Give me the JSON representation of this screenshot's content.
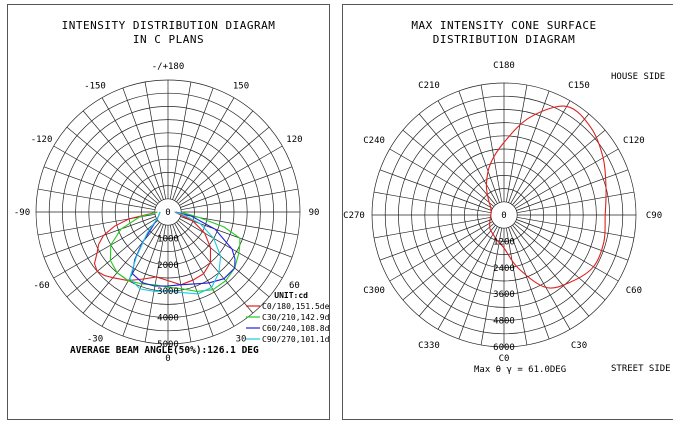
{
  "left_chart": {
    "title_line1": "INTENSITY DISTRIBUTION DIAGRAM",
    "title_line2": "IN C PLANS",
    "unit_label": "UNIT:cd",
    "footer": "AVERAGE BEAM ANGLE(50%):126.1 DEG",
    "angle_labels": [
      {
        "angle": 180,
        "text": "-/+180"
      },
      {
        "angle": 150,
        "text": "150"
      },
      {
        "angle": -150,
        "text": "-150"
      },
      {
        "angle": 120,
        "text": "120"
      },
      {
        "angle": -120,
        "text": "-120"
      },
      {
        "angle": 90,
        "text": "90"
      },
      {
        "angle": -90,
        "text": "-90"
      },
      {
        "angle": 60,
        "text": "60"
      },
      {
        "angle": -60,
        "text": "-60"
      },
      {
        "angle": 30,
        "text": "30"
      },
      {
        "angle": -30,
        "text": "-30"
      },
      {
        "angle": 0,
        "text": "0"
      }
    ],
    "radial_labels": [
      "0",
      "1000",
      "2000",
      "3000",
      "4000",
      "5000"
    ],
    "legend": [
      {
        "text": "C0/180,151.5deg",
        "color": "#e02020"
      },
      {
        "text": "C30/210,142.9deg",
        "color": "#22cc22"
      },
      {
        "text": "C60/240,108.8deg",
        "color": "#2020e0"
      },
      {
        "text": "C90/270,101.1deg",
        "color": "#20c8e0"
      }
    ]
  },
  "right_chart": {
    "title_line1": "MAX INTENSITY CONE SURFACE",
    "title_line2": "DISTRIBUTION DIAGRAM",
    "house_side": "HOUSE SIDE",
    "street_side": "STREET SIDE",
    "footer_c0": "C0",
    "footer_max": "Max θ γ = 61.0DEG",
    "c_labels": [
      {
        "angle": 180,
        "text": "C180"
      },
      {
        "angle": 150,
        "text": "C150"
      },
      {
        "angle": 120,
        "text": "C120"
      },
      {
        "angle": 90,
        "text": "C90"
      },
      {
        "angle": 60,
        "text": "C60"
      },
      {
        "angle": 30,
        "text": "C30"
      },
      {
        "angle": -30,
        "text": "C330"
      },
      {
        "angle": -60,
        "text": "C300"
      },
      {
        "angle": -90,
        "text": "C270"
      },
      {
        "angle": -120,
        "text": "C240"
      },
      {
        "angle": -150,
        "text": "C210"
      }
    ],
    "radial_labels": [
      "0",
      "1200",
      "2400",
      "3600",
      "4800",
      "6000"
    ],
    "curve_color": "#e02020"
  },
  "chart_data": [
    {
      "type": "polar",
      "title": "INTENSITY DISTRIBUTION DIAGRAM IN C PLANS",
      "rlim": [
        0,
        5000
      ],
      "unit": "cd",
      "series": [
        {
          "name": "C0/180,151.5deg",
          "angles": [
            -90,
            -80,
            -75,
            -70,
            -65,
            -60,
            -55,
            -50,
            -45,
            -40,
            -30,
            -20,
            -10,
            0,
            10,
            20,
            30,
            40,
            50,
            60,
            70,
            80,
            90
          ],
          "values": [
            400,
            1500,
            2100,
            2600,
            2900,
            3100,
            3400,
            3500,
            3400,
            3250,
            3000,
            2700,
            2500,
            2600,
            2800,
            2750,
            2700,
            2500,
            2100,
            1600,
            1000,
            400,
            250
          ]
        },
        {
          "name": "C30/210,142.9deg",
          "angles": [
            -90,
            -80,
            -70,
            -60,
            -50,
            -40,
            -30,
            -20,
            -10,
            0,
            10,
            20,
            30,
            40,
            50,
            60,
            65,
            70,
            75,
            80,
            90
          ],
          "values": [
            400,
            1100,
            1900,
            2500,
            2850,
            3000,
            3000,
            2900,
            2800,
            2850,
            2950,
            3200,
            3400,
            3400,
            3300,
            3100,
            3000,
            2900,
            2200,
            1200,
            500
          ]
        },
        {
          "name": "C60/240,108.8deg",
          "angles": [
            -90,
            -60,
            -45,
            -40,
            -35,
            -30,
            -20,
            -10,
            0,
            10,
            20,
            30,
            40,
            50,
            55,
            60,
            70,
            80,
            90
          ],
          "values": [
            300,
            450,
            900,
            1500,
            2200,
            2700,
            2850,
            2850,
            2800,
            2800,
            2900,
            3100,
            3300,
            3300,
            3100,
            2800,
            1900,
            900,
            300
          ]
        },
        {
          "name": "C90/270,101.1deg",
          "angles": [
            -90,
            -60,
            -45,
            -35,
            -30,
            -20,
            -10,
            0,
            10,
            20,
            30,
            40,
            50,
            60,
            70,
            80,
            90
          ],
          "values": [
            300,
            450,
            1100,
            2100,
            2900,
            3100,
            3050,
            3000,
            3100,
            3300,
            3300,
            3000,
            2600,
            2000,
            1300,
            600,
            250
          ]
        }
      ]
    },
    {
      "type": "polar",
      "title": "MAX INTENSITY CONE SURFACE DISTRIBUTION DIAGRAM",
      "rlim": [
        0,
        6000
      ],
      "series": [
        {
          "angles": [
            0,
            15,
            30,
            45,
            60,
            75,
            90,
            105,
            120,
            135,
            150,
            165,
            180,
            195,
            210,
            225,
            240,
            255,
            270,
            285,
            300,
            315,
            330,
            345
          ],
          "values": [
            1500,
            2500,
            3800,
            4300,
            4700,
            4700,
            4600,
            4800,
            5200,
            5600,
            5700,
            4600,
            3300,
            2400,
            1600,
            1000,
            700,
            600,
            600,
            650,
            750,
            900,
            1000,
            1200
          ]
        }
      ]
    }
  ]
}
